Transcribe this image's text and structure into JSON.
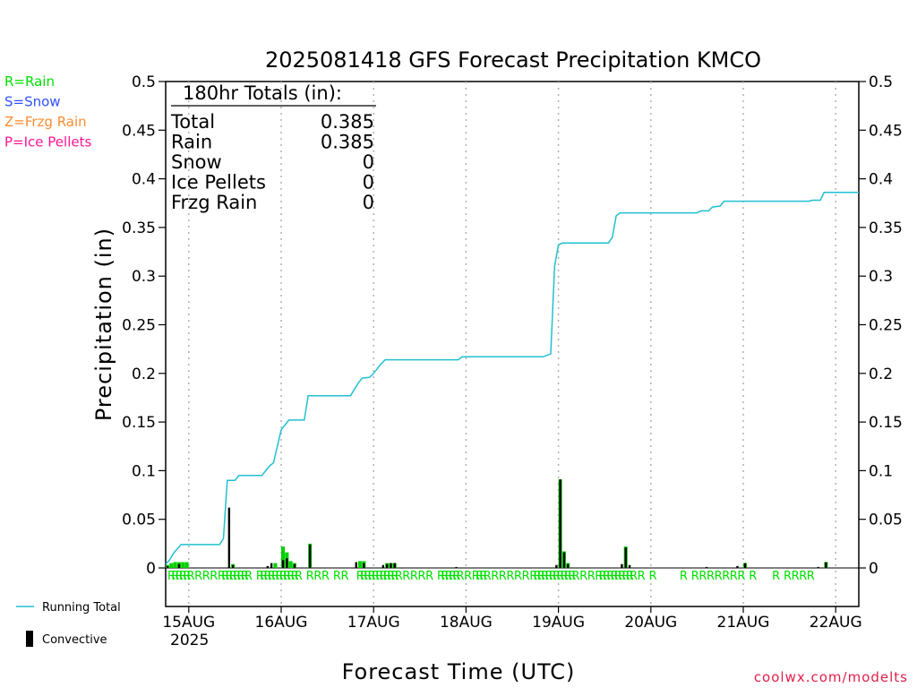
{
  "chart_data": {
    "type": "bar",
    "title": "2025081418 GFS Forecast Precipitation KMCO",
    "ylabel": "Precipitation (in)",
    "xlabel": "Forecast Time (UTC)",
    "ylim": [
      0,
      0.5
    ],
    "yticks": [
      "0",
      "0.05",
      "0.1",
      "0.15",
      "0.2",
      "0.25",
      "0.3",
      "0.35",
      "0.4",
      "0.45",
      "0.5"
    ],
    "xlim_hours": [
      0,
      180
    ],
    "x_ticks": [
      {
        "label": "15AUG",
        "hour": 6
      },
      {
        "label": "16AUG",
        "hour": 30
      },
      {
        "label": "17AUG",
        "hour": 54
      },
      {
        "label": "18AUG",
        "hour": 78
      },
      {
        "label": "19AUG",
        "hour": 102
      },
      {
        "label": "20AUG",
        "hour": 126
      },
      {
        "label": "21AUG",
        "hour": 150
      },
      {
        "label": "22AUG",
        "hour": 174
      }
    ],
    "year_label": "2025",
    "precip_type_legend": [
      {
        "text": "R=Rain",
        "color": "#00e000"
      },
      {
        "text": "S=Snow",
        "color": "#3050ff"
      },
      {
        "text": "Z=Frzg Rain",
        "color": "#ff8c30"
      },
      {
        "text": "P=Ice Pellets",
        "color": "#ff1493"
      }
    ],
    "series_legend": {
      "running_total": "Running Total",
      "convective": "Convective"
    },
    "series": [
      {
        "name": "Running Total",
        "color": "#20c0d0",
        "points": [
          [
            0,
            0.004
          ],
          [
            1,
            0.008
          ],
          [
            2,
            0.015
          ],
          [
            4,
            0.024
          ],
          [
            14,
            0.024
          ],
          [
            15,
            0.03
          ],
          [
            16,
            0.09
          ],
          [
            18,
            0.09
          ],
          [
            19,
            0.095
          ],
          [
            25,
            0.095
          ],
          [
            26,
            0.1
          ],
          [
            27,
            0.105
          ],
          [
            28,
            0.108
          ],
          [
            30,
            0.142
          ],
          [
            31,
            0.147
          ],
          [
            32,
            0.152
          ],
          [
            36,
            0.152
          ],
          [
            37,
            0.177
          ],
          [
            48,
            0.177
          ],
          [
            50,
            0.19
          ],
          [
            51,
            0.195
          ],
          [
            53,
            0.196
          ],
          [
            54,
            0.2
          ],
          [
            56,
            0.21
          ],
          [
            57,
            0.214
          ],
          [
            76,
            0.214
          ],
          [
            77,
            0.217
          ],
          [
            98,
            0.217
          ],
          [
            100,
            0.22
          ],
          [
            101,
            0.31
          ],
          [
            102,
            0.332
          ],
          [
            103,
            0.334
          ],
          [
            115,
            0.334
          ],
          [
            116,
            0.34
          ],
          [
            117,
            0.362
          ],
          [
            118,
            0.365
          ],
          [
            138,
            0.365
          ],
          [
            139,
            0.367
          ],
          [
            141,
            0.367
          ],
          [
            142,
            0.371
          ],
          [
            144,
            0.372
          ],
          [
            145,
            0.377
          ],
          [
            167,
            0.377
          ],
          [
            168,
            0.378
          ],
          [
            170,
            0.378
          ],
          [
            171,
            0.386
          ],
          [
            180,
            0.386
          ]
        ]
      },
      {
        "name": "Rain",
        "color": "#00d000",
        "bars": [
          [
            0,
            0.003
          ],
          [
            1,
            0.005
          ],
          [
            2,
            0.006
          ],
          [
            3,
            0.006
          ],
          [
            4,
            0.006
          ],
          [
            5,
            0.006
          ],
          [
            17,
            0.004
          ],
          [
            28,
            0.005
          ],
          [
            30,
            0.022
          ],
          [
            31,
            0.016
          ],
          [
            32,
            0.007
          ],
          [
            33,
            0.005
          ],
          [
            37,
            0.025
          ],
          [
            50,
            0.007
          ],
          [
            51,
            0.007
          ],
          [
            57,
            0.005
          ],
          [
            58,
            0.005
          ],
          [
            59,
            0.005
          ],
          [
            102,
            0.091
          ],
          [
            103,
            0.017
          ],
          [
            104,
            0.005
          ],
          [
            119,
            0.022
          ],
          [
            150,
            0.005
          ],
          [
            171,
            0.006
          ]
        ]
      },
      {
        "name": "Convective",
        "color": "#000000",
        "bars": [
          [
            0,
            0.002
          ],
          [
            3,
            0.004
          ],
          [
            16,
            0.062
          ],
          [
            17,
            0.003
          ],
          [
            26,
            0.002
          ],
          [
            27,
            0.005
          ],
          [
            30,
            0.008
          ],
          [
            31,
            0.01
          ],
          [
            33,
            0.004
          ],
          [
            37,
            0.024
          ],
          [
            49,
            0.006
          ],
          [
            51,
            0.005
          ],
          [
            56,
            0.003
          ],
          [
            57,
            0.004
          ],
          [
            58,
            0.005
          ],
          [
            59,
            0.005
          ],
          [
            75,
            0.001
          ],
          [
            101,
            0.003
          ],
          [
            102,
            0.091
          ],
          [
            103,
            0.016
          ],
          [
            104,
            0.004
          ],
          [
            118,
            0.004
          ],
          [
            119,
            0.021
          ],
          [
            120,
            0.003
          ],
          [
            140,
            0.001
          ],
          [
            148,
            0.002
          ],
          [
            150,
            0.005
          ],
          [
            169,
            0.001
          ],
          [
            171,
            0.006
          ]
        ]
      }
    ],
    "ptype_marks": {
      "symbol": "R",
      "hours": [
        0,
        1,
        2,
        3,
        4,
        5,
        7,
        9,
        11,
        13,
        14,
        15,
        16,
        17,
        18,
        19,
        20,
        23,
        24,
        25,
        26,
        27,
        28,
        29,
        30,
        31,
        32,
        33,
        36,
        38,
        40,
        43,
        45,
        49,
        50,
        51,
        52,
        53,
        54,
        55,
        56,
        57,
        58,
        59,
        61,
        63,
        65,
        67,
        70,
        71,
        72,
        73,
        74,
        75,
        77,
        79,
        80,
        81,
        82,
        84,
        86,
        88,
        90,
        92,
        94,
        95,
        96,
        97,
        98,
        99,
        100,
        101,
        102,
        103,
        104,
        105,
        107,
        109,
        111,
        112,
        113,
        114,
        115,
        116,
        117,
        118,
        119,
        120,
        122,
        125,
        133,
        136,
        138,
        140,
        142,
        144,
        146,
        148,
        151,
        157,
        160,
        162,
        164,
        166
      ]
    }
  },
  "totals_box": {
    "header": "180hr Totals (in):",
    "rows": [
      {
        "label": "Total",
        "value": "0.385"
      },
      {
        "label": "Rain",
        "value": "0.385"
      },
      {
        "label": "Snow",
        "value": "0"
      },
      {
        "label": "Ice Pellets",
        "value": "0"
      },
      {
        "label": "Frzg Rain",
        "value": "0"
      }
    ]
  },
  "credit": "coolwx.com/modelts"
}
